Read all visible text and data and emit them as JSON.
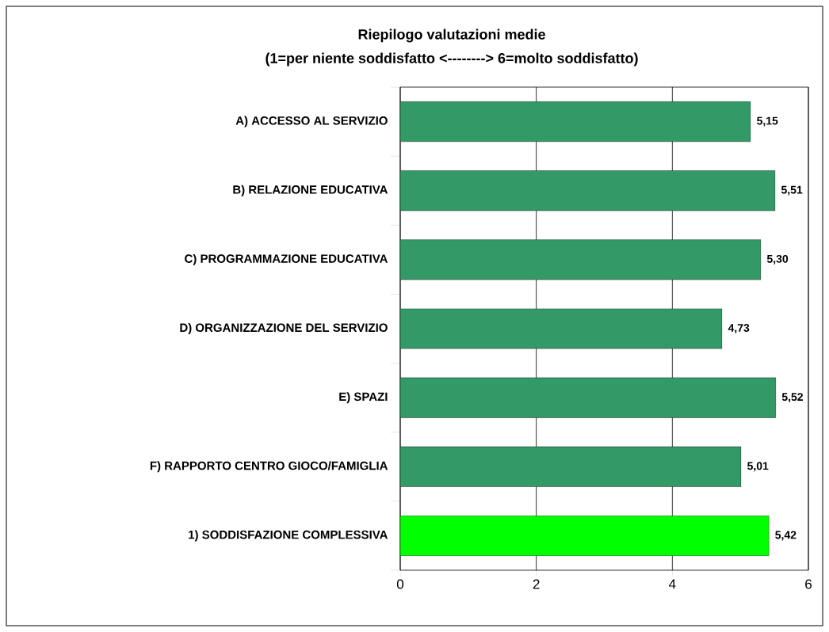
{
  "chart_data": {
    "type": "bar",
    "orientation": "horizontal",
    "title": "Riepilogo valutazioni medie",
    "subtitle": "(1=per niente soddisfatto <--------> 6=molto soddisfatto)",
    "categories": [
      "A) ACCESSO AL SERVIZIO",
      "B) RELAZIONE EDUCATIVA",
      "C) PROGRAMMAZIONE EDUCATIVA",
      "D) ORGANIZZAZIONE DEL SERVIZIO",
      "E) SPAZI",
      "F) RAPPORTO CENTRO GIOCO/FAMIGLIA",
      "1) SODDISFAZIONE COMPLESSIVA"
    ],
    "values": [
      5.15,
      5.51,
      5.3,
      4.73,
      5.52,
      5.01,
      5.42
    ],
    "colors": [
      "#339966",
      "#339966",
      "#339966",
      "#339966",
      "#339966",
      "#339966",
      "#00ff00"
    ],
    "value_labels": [
      "5,15",
      "5,51",
      "5,30",
      "4,73",
      "5,52",
      "5,01",
      "5,42"
    ],
    "xlim": [
      0,
      6
    ],
    "xticks": [
      0,
      2,
      4,
      6
    ],
    "grid": "x"
  }
}
